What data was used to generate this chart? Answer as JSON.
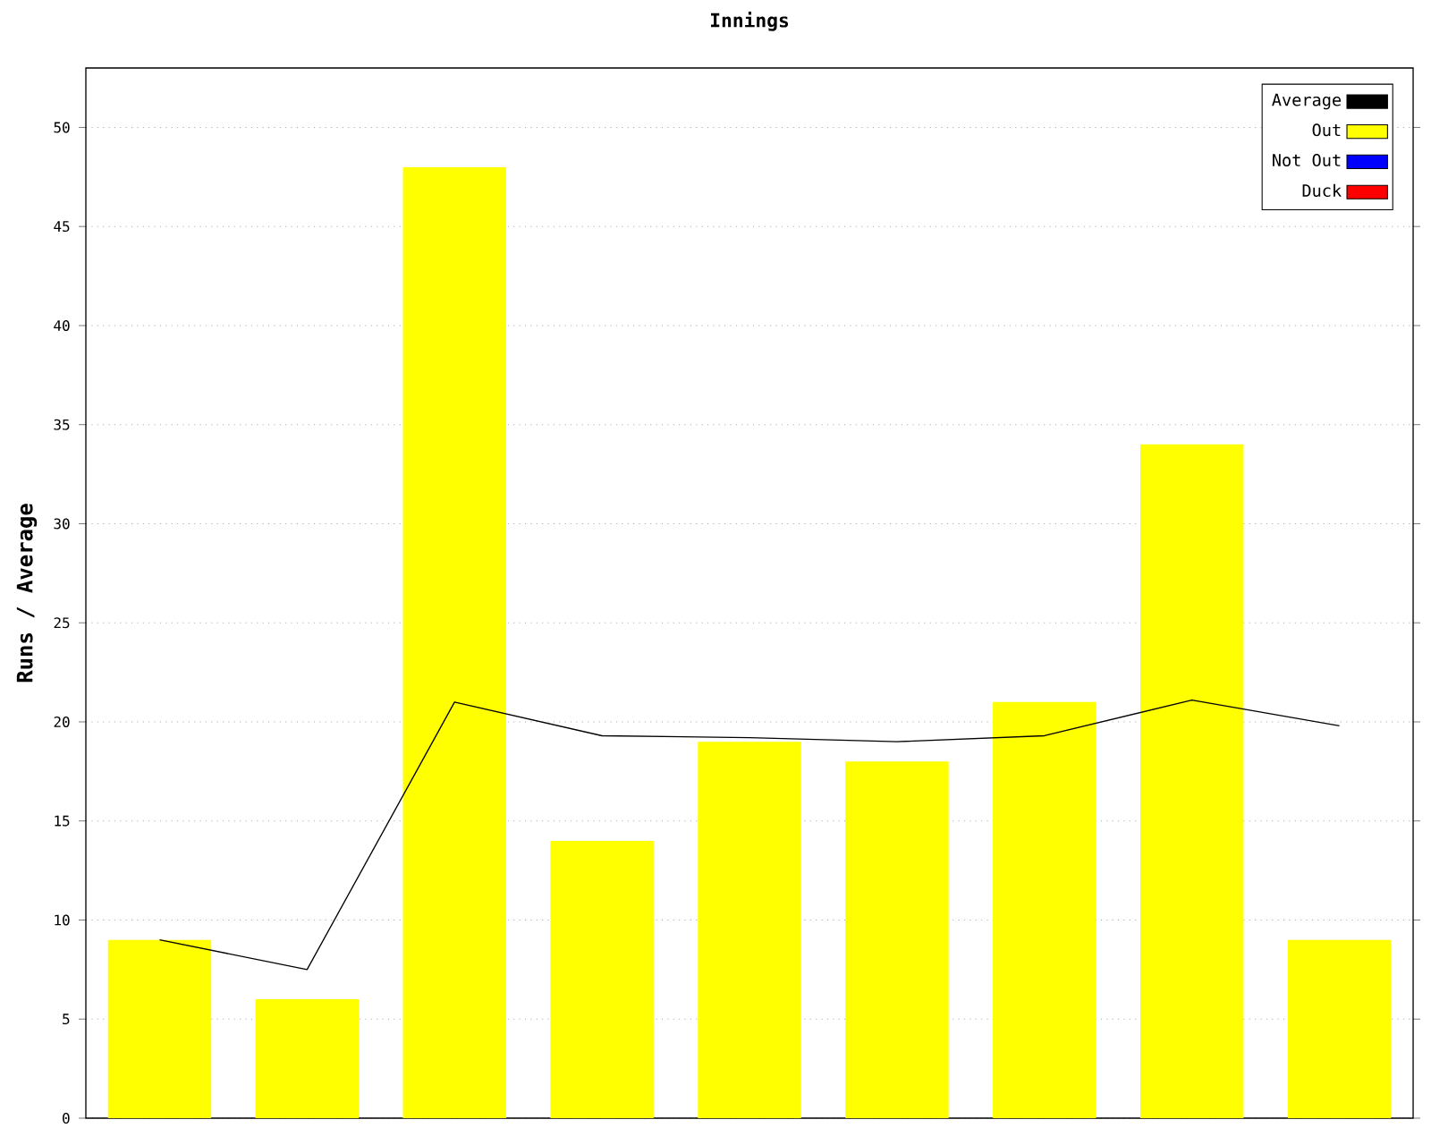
{
  "chart_data": {
    "type": "bar",
    "title": "Innings",
    "ylabel": "Runs / Average",
    "categories": [
      null,
      null,
      null,
      null,
      null,
      null,
      null,
      null,
      null
    ],
    "series": [
      {
        "name": "Average",
        "type": "line",
        "color": "#000000",
        "values": [
          9,
          7.5,
          21,
          19.3,
          19.2,
          19,
          19.3,
          21.1,
          19.8
        ]
      },
      {
        "name": "Out",
        "color": "#ffff00",
        "values": [
          9,
          6,
          48,
          14,
          19,
          18,
          21,
          34,
          9
        ]
      },
      {
        "name": "Not Out",
        "color": "#0000ff",
        "values": [
          null,
          null,
          null,
          null,
          null,
          null,
          null,
          null,
          null
        ]
      },
      {
        "name": "Duck",
        "color": "#ff0000",
        "values": [
          null,
          null,
          null,
          null,
          null,
          null,
          null,
          null,
          null
        ]
      }
    ],
    "ylim": [
      0,
      53
    ],
    "yticks": [
      0,
      5,
      10,
      15,
      20,
      25,
      30,
      35,
      40,
      45,
      50
    ],
    "grid": "y",
    "legend": "top right",
    "marker": "none",
    "line_style": "solid"
  }
}
